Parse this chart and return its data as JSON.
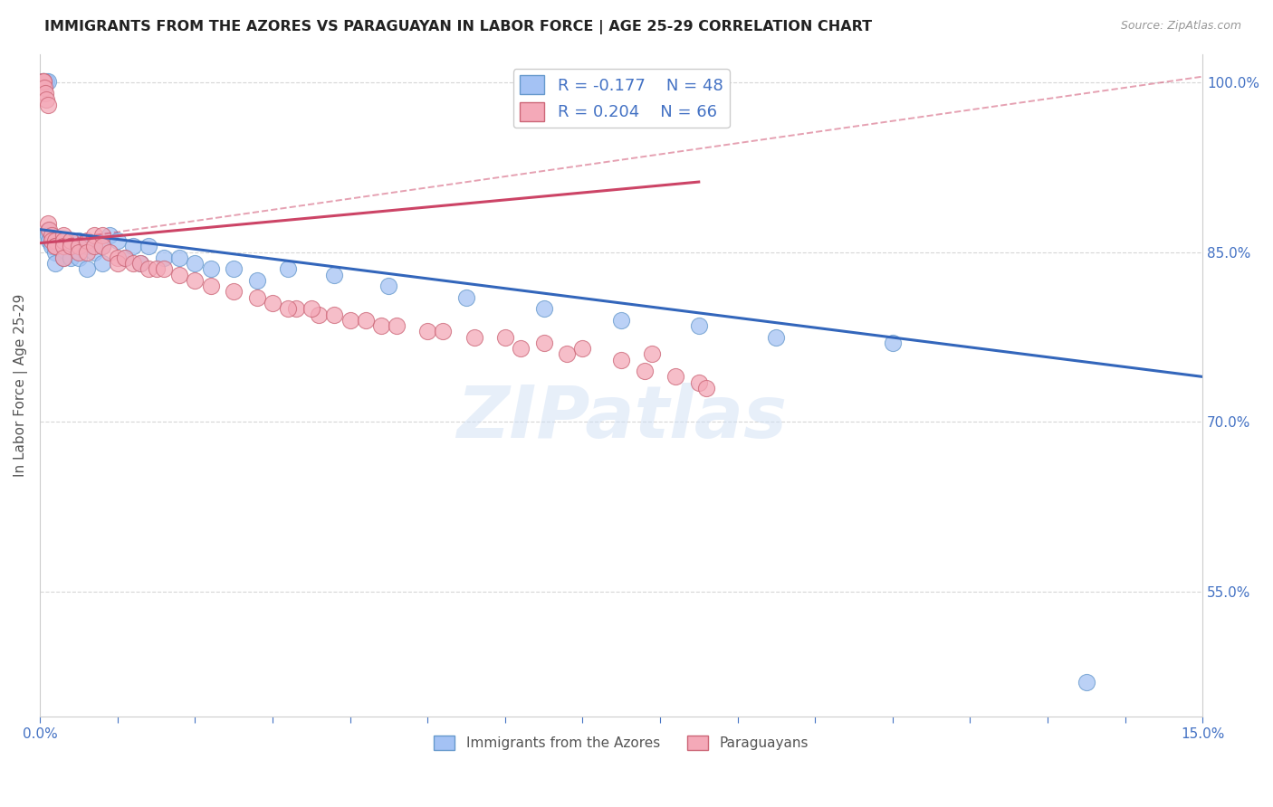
{
  "title": "IMMIGRANTS FROM THE AZORES VS PARAGUAYAN IN LABOR FORCE | AGE 25-29 CORRELATION CHART",
  "source": "Source: ZipAtlas.com",
  "ylabel": "In Labor Force | Age 25-29",
  "xmin": 0.0,
  "xmax": 0.15,
  "ymin": 0.44,
  "ymax": 1.025,
  "ytick_positions": [
    0.55,
    0.7,
    0.85,
    1.0
  ],
  "ytick_labels": [
    "55.0%",
    "70.0%",
    "85.0%",
    "100.0%"
  ],
  "legend_r1": "-0.177",
  "legend_n1": "48",
  "legend_r2": "0.204",
  "legend_n2": "66",
  "blue_color": "#a4c2f4",
  "pink_color": "#f4a9b8",
  "blue_edge_color": "#6699cc",
  "pink_edge_color": "#cc6677",
  "blue_line_color": "#3366bb",
  "pink_line_color": "#cc4466",
  "blue_dash_color": "#aabbdd",
  "blue_trendline": [
    [
      0.0,
      0.87
    ],
    [
      0.15,
      0.74
    ]
  ],
  "pink_trendline": [
    [
      0.0,
      0.858
    ],
    [
      0.085,
      0.912
    ]
  ],
  "pink_dashline": [
    [
      0.0,
      0.858
    ],
    [
      0.15,
      1.005
    ]
  ],
  "blue_x": [
    0.0003,
    0.0004,
    0.0005,
    0.0006,
    0.0008,
    0.001,
    0.001,
    0.001,
    0.0012,
    0.0015,
    0.0015,
    0.002,
    0.002,
    0.002,
    0.003,
    0.003,
    0.003,
    0.004,
    0.004,
    0.005,
    0.005,
    0.006,
    0.006,
    0.007,
    0.008,
    0.008,
    0.009,
    0.01,
    0.011,
    0.012,
    0.013,
    0.014,
    0.016,
    0.018,
    0.02,
    0.022,
    0.025,
    0.028,
    0.032,
    0.038,
    0.045,
    0.055,
    0.065,
    0.075,
    0.085,
    0.095,
    0.11,
    0.135
  ],
  "blue_y": [
    1.001,
    1.001,
    1.001,
    1.001,
    1.001,
    1.001,
    0.869,
    0.865,
    0.86,
    0.858,
    0.855,
    0.855,
    0.85,
    0.84,
    0.86,
    0.855,
    0.845,
    0.86,
    0.845,
    0.86,
    0.845,
    0.855,
    0.835,
    0.85,
    0.855,
    0.84,
    0.865,
    0.86,
    0.845,
    0.855,
    0.84,
    0.855,
    0.845,
    0.845,
    0.84,
    0.835,
    0.835,
    0.825,
    0.835,
    0.83,
    0.82,
    0.81,
    0.8,
    0.79,
    0.785,
    0.775,
    0.77,
    0.47
  ],
  "pink_x": [
    0.0003,
    0.0004,
    0.0005,
    0.0006,
    0.0007,
    0.0008,
    0.001,
    0.001,
    0.0012,
    0.0015,
    0.0015,
    0.002,
    0.002,
    0.002,
    0.003,
    0.003,
    0.003,
    0.003,
    0.004,
    0.004,
    0.005,
    0.005,
    0.006,
    0.006,
    0.007,
    0.007,
    0.008,
    0.008,
    0.009,
    0.01,
    0.01,
    0.011,
    0.012,
    0.013,
    0.014,
    0.015,
    0.016,
    0.018,
    0.02,
    0.022,
    0.025,
    0.028,
    0.03,
    0.033,
    0.036,
    0.04,
    0.044,
    0.05,
    0.056,
    0.062,
    0.068,
    0.075,
    0.078,
    0.082,
    0.085,
    0.086,
    0.032,
    0.035,
    0.038,
    0.042,
    0.046,
    0.052,
    0.06,
    0.065,
    0.07,
    0.079
  ],
  "pink_y": [
    1.001,
    1.001,
    1.001,
    0.995,
    0.99,
    0.985,
    0.98,
    0.875,
    0.87,
    0.865,
    0.86,
    0.86,
    0.855,
    0.855,
    0.865,
    0.86,
    0.855,
    0.845,
    0.86,
    0.855,
    0.855,
    0.85,
    0.86,
    0.85,
    0.865,
    0.855,
    0.865,
    0.855,
    0.85,
    0.845,
    0.84,
    0.845,
    0.84,
    0.84,
    0.835,
    0.835,
    0.835,
    0.83,
    0.825,
    0.82,
    0.815,
    0.81,
    0.805,
    0.8,
    0.795,
    0.79,
    0.785,
    0.78,
    0.775,
    0.765,
    0.76,
    0.755,
    0.745,
    0.74,
    0.735,
    0.73,
    0.8,
    0.8,
    0.795,
    0.79,
    0.785,
    0.78,
    0.775,
    0.77,
    0.765,
    0.76
  ],
  "watermark_text": "ZIPatlas",
  "background_color": "#ffffff",
  "grid_color": "#cccccc"
}
